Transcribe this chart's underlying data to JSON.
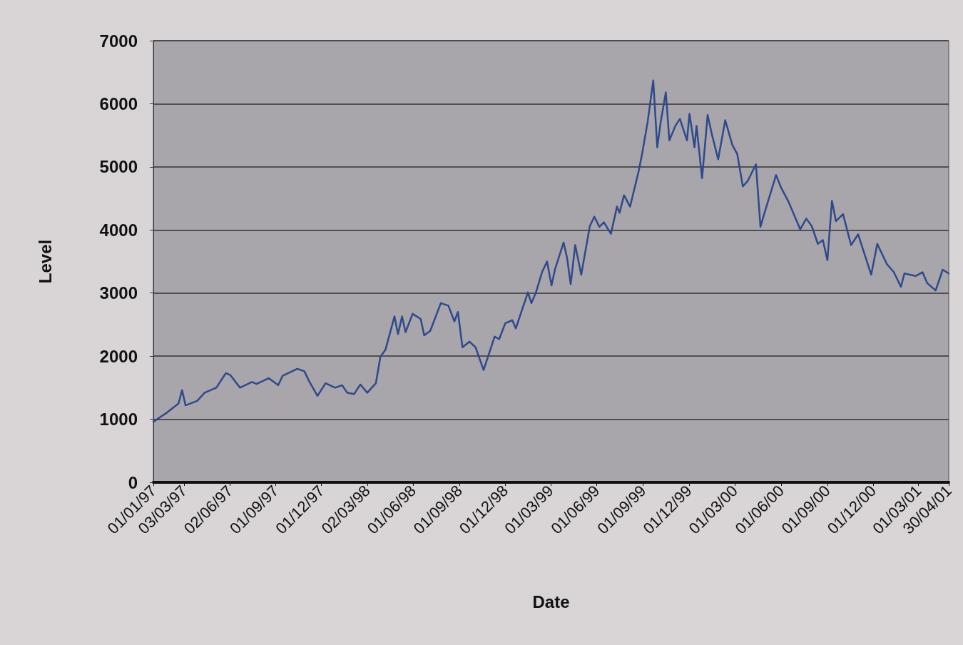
{
  "chart_data": {
    "type": "line",
    "xlabel": "Date",
    "ylabel": "Level",
    "x": [
      "1997-01-01",
      "1997-01-27",
      "1997-02-20",
      "1997-02-27",
      "1997-03-06",
      "1997-03-29",
      "1997-04-13",
      "1997-05-06",
      "1997-05-25",
      "1997-06-03",
      "1997-06-22",
      "1997-07-16",
      "1997-07-25",
      "1997-08-18",
      "1997-09-06",
      "1997-09-15",
      "1997-10-14",
      "1997-10-28",
      "1997-11-06",
      "1997-11-23",
      "1997-12-09",
      "1997-12-28",
      "1998-01-11",
      "1998-01-21",
      "1998-02-04",
      "1998-02-16",
      "1998-03-02",
      "1998-03-19",
      "1998-03-28",
      "1998-04-07",
      "1998-04-25",
      "1998-05-02",
      "1998-05-10",
      "1998-05-17",
      "1998-05-31",
      "1998-06-16",
      "1998-06-23",
      "1998-07-05",
      "1998-07-26",
      "1998-08-10",
      "1998-08-22",
      "1998-08-29",
      "1998-09-07",
      "1998-09-21",
      "1998-10-03",
      "1998-10-19",
      "1998-11-10",
      "1998-11-19",
      "1998-12-01",
      "1998-12-15",
      "1998-12-22",
      "1999-01-15",
      "1999-01-22",
      "1999-01-31",
      "1999-02-12",
      "1999-02-22",
      "1999-03-03",
      "1999-03-10",
      "1999-03-27",
      "1999-04-03",
      "1999-04-10",
      "1999-04-19",
      "1999-05-01",
      "1999-05-18",
      "1999-05-27",
      "1999-06-06",
      "1999-06-15",
      "1999-06-29",
      "1999-07-11",
      "1999-07-16",
      "1999-07-25",
      "1999-08-06",
      "1999-08-23",
      "1999-08-30",
      "1999-09-10",
      "1999-09-21",
      "1999-09-29",
      "1999-10-06",
      "1999-10-16",
      "1999-10-23",
      "1999-11-04",
      "1999-11-13",
      "1999-11-27",
      "1999-12-02",
      "1999-12-12",
      "1999-12-16",
      "1999-12-27",
      "2000-01-07",
      "2000-01-16",
      "2000-01-28",
      "2000-02-11",
      "2000-02-25",
      "2000-03-06",
      "2000-03-17",
      "2000-03-27",
      "2000-04-12",
      "2000-04-21",
      "2000-04-29",
      "2000-05-22",
      "2000-06-01",
      "2000-06-15",
      "2000-07-09",
      "2000-07-21",
      "2000-08-01",
      "2000-08-13",
      "2000-08-23",
      "2000-09-01",
      "2000-09-10",
      "2000-09-18",
      "2000-10-02",
      "2000-10-18",
      "2000-11-01",
      "2000-11-27",
      "2000-12-09",
      "2000-12-28",
      "2001-01-11",
      "2001-01-25",
      "2001-02-01",
      "2001-02-23",
      "2001-03-09",
      "2001-03-18",
      "2001-04-04",
      "2001-04-18",
      "2001-04-30"
    ],
    "series": [
      {
        "color": "#2e4a8c",
        "values": [
          960,
          1100,
          1250,
          1460,
          1220,
          1290,
          1420,
          1500,
          1730,
          1700,
          1500,
          1590,
          1560,
          1650,
          1540,
          1690,
          1800,
          1760,
          1610,
          1370,
          1570,
          1500,
          1540,
          1420,
          1400,
          1550,
          1420,
          1570,
          1990,
          2100,
          2630,
          2350,
          2630,
          2380,
          2670,
          2590,
          2330,
          2400,
          2840,
          2800,
          2550,
          2700,
          2140,
          2230,
          2140,
          1780,
          2310,
          2270,
          2520,
          2570,
          2440,
          3010,
          2840,
          3010,
          3330,
          3500,
          3120,
          3380,
          3800,
          3550,
          3140,
          3760,
          3290,
          4060,
          4210,
          4050,
          4120,
          3940,
          4370,
          4270,
          4550,
          4370,
          4930,
          5210,
          5720,
          6370,
          5310,
          5720,
          6180,
          5420,
          5650,
          5760,
          5420,
          5840,
          5310,
          5650,
          4820,
          5820,
          5500,
          5120,
          5740,
          5350,
          5200,
          4690,
          4780,
          5040,
          4050,
          4270,
          4870,
          4670,
          4460,
          4010,
          4180,
          4060,
          3780,
          3840,
          3520,
          4460,
          4140,
          4250,
          3760,
          3930,
          3290,
          3780,
          3460,
          3330,
          3100,
          3310,
          3270,
          3330,
          3160,
          3040,
          3370,
          3310
        ]
      }
    ],
    "xlim": [
      "1997-01-01",
      "2001-04-30"
    ],
    "xticks": [
      {
        "value": "1997-01-01",
        "label": "01/01/97"
      },
      {
        "value": "1997-03-03",
        "label": "03/03/97"
      },
      {
        "value": "1997-06-02",
        "label": "02/06/97"
      },
      {
        "value": "1997-09-01",
        "label": "01/09/97"
      },
      {
        "value": "1997-12-01",
        "label": "01/12/97"
      },
      {
        "value": "1998-03-02",
        "label": "02/03/98"
      },
      {
        "value": "1998-06-01",
        "label": "01/06/98"
      },
      {
        "value": "1998-09-01",
        "label": "01/09/98"
      },
      {
        "value": "1998-12-01",
        "label": "01/12/98"
      },
      {
        "value": "1999-03-01",
        "label": "01/03/99"
      },
      {
        "value": "1999-06-01",
        "label": "01/06/99"
      },
      {
        "value": "1999-09-01",
        "label": "01/09/99"
      },
      {
        "value": "1999-12-01",
        "label": "01/12/99"
      },
      {
        "value": "2000-03-01",
        "label": "01/03/00"
      },
      {
        "value": "2000-06-01",
        "label": "01/06/00"
      },
      {
        "value": "2000-09-01",
        "label": "01/09/00"
      },
      {
        "value": "2000-12-01",
        "label": "01/12/00"
      },
      {
        "value": "2001-03-01",
        "label": "01/03/01"
      },
      {
        "value": "2001-04-30",
        "label": "30/04/01"
      }
    ],
    "ylim": [
      0,
      7000
    ],
    "yticks": [
      0,
      1000,
      2000,
      3000,
      4000,
      5000,
      6000,
      7000
    ],
    "grid": "y",
    "marker": "none",
    "line_style": "solid"
  }
}
